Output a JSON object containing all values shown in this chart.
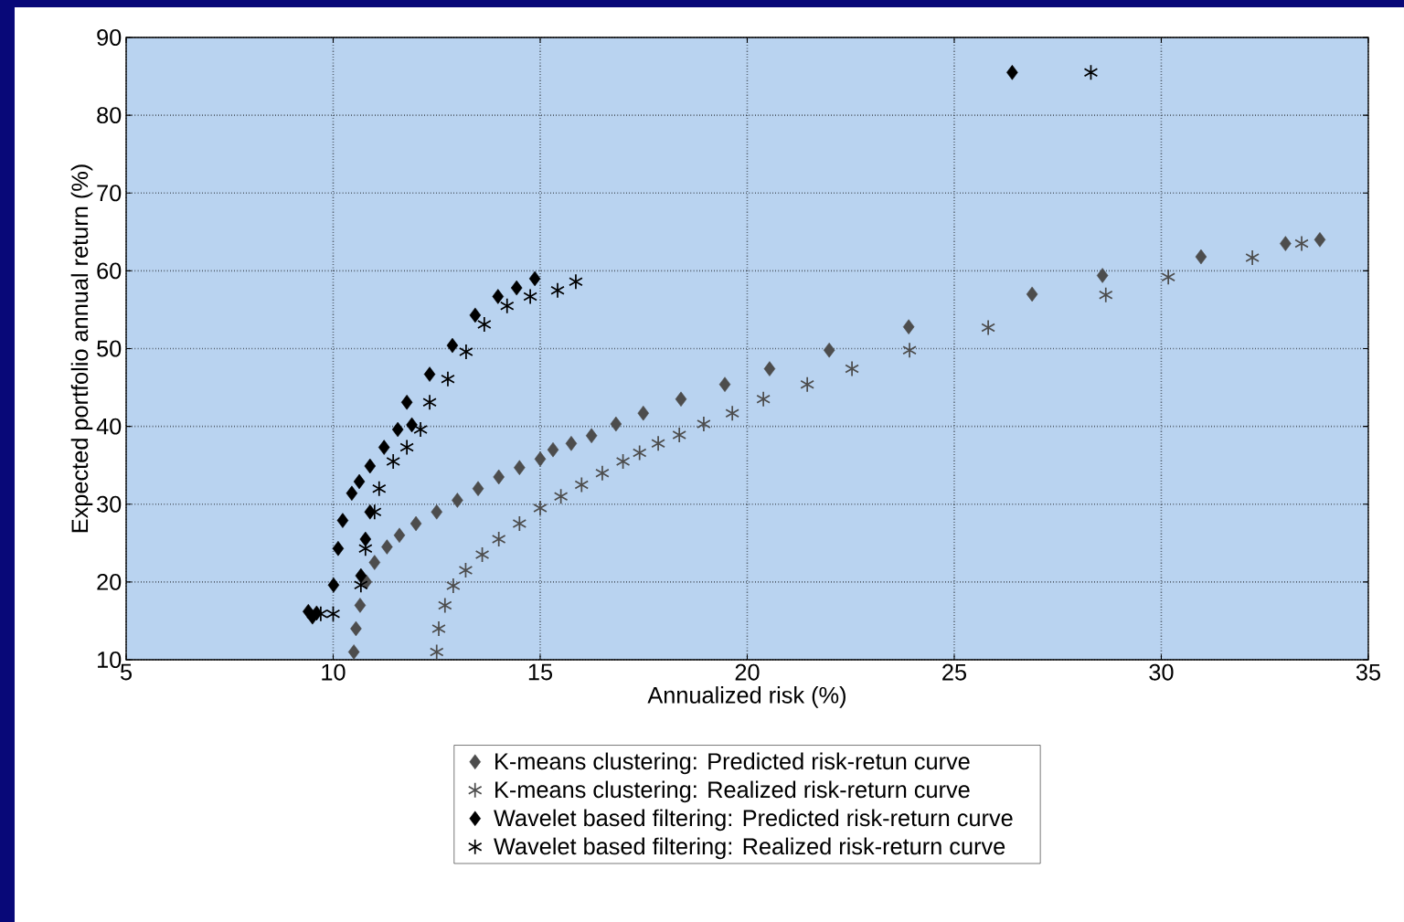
{
  "chart_data": {
    "type": "scatter",
    "xlabel": "Annualized risk (%)",
    "ylabel": "Expected portfolio annual return (%)",
    "xlim": [
      5,
      35
    ],
    "ylim": [
      10,
      90
    ],
    "xticks": [
      5,
      10,
      15,
      20,
      25,
      30,
      35
    ],
    "yticks": [
      10,
      20,
      30,
      40,
      50,
      60,
      70,
      80,
      90
    ],
    "grid": true,
    "legend": "bottom",
    "series": [
      {
        "name": "K-means clustering: Predicted risk-retun curve",
        "color": "#4d4d4d",
        "marker": "diamond",
        "x": [
          10.5,
          10.55,
          10.65,
          10.8,
          11.0,
          11.3,
          11.6,
          12.0,
          12.5,
          13.0,
          13.5,
          14.0,
          14.5,
          15.0,
          15.31,
          15.75,
          16.24,
          16.83,
          17.49,
          18.4,
          19.46,
          20.54,
          21.98,
          23.9,
          26.88,
          28.58,
          30.96,
          33.0,
          33.83
        ],
        "values": [
          11,
          14,
          17,
          20,
          22.5,
          24.5,
          26,
          27.5,
          29,
          30.5,
          32,
          33.5,
          34.7,
          35.8,
          37.0,
          37.8,
          38.8,
          40.3,
          41.7,
          43.5,
          45.4,
          47.4,
          49.8,
          52.8,
          57.0,
          59.4,
          61.8,
          63.5,
          64.0
        ]
      },
      {
        "name": "K-means clustering: Realized risk-return curve",
        "color": "#4d4d4d",
        "marker": "cross",
        "x": [
          12.5,
          12.55,
          12.7,
          12.9,
          13.2,
          13.6,
          14.0,
          14.5,
          15.0,
          15.5,
          16.0,
          16.5,
          17.0,
          17.4,
          17.85,
          18.36,
          18.95,
          19.64,
          20.39,
          21.45,
          22.53,
          23.92,
          25.82,
          28.66,
          30.17,
          32.2,
          33.39
        ],
        "values": [
          11,
          14,
          17,
          19.5,
          21.5,
          23.5,
          25.5,
          27.5,
          29.5,
          31,
          32.5,
          34,
          35.5,
          36.6,
          37.8,
          38.9,
          40.3,
          41.7,
          43.5,
          45.4,
          47.4,
          49.8,
          52.7,
          56.9,
          59.2,
          61.7,
          63.5
        ]
      },
      {
        "name": "Wavelet based filtering: Predicted risk-return curve",
        "color": "#000000",
        "marker": "diamond",
        "x": [
          9.4,
          9.5,
          9.6,
          10.01,
          10.12,
          10.23,
          10.45,
          10.63,
          10.67,
          10.78,
          10.89,
          10.89,
          11.23,
          11.56,
          11.9,
          11.78,
          12.33,
          12.88,
          13.43,
          13.98,
          14.43,
          14.87,
          26.4
        ],
        "values": [
          16.2,
          15.5,
          16.0,
          19.6,
          24.3,
          27.9,
          31.4,
          32.9,
          20.8,
          25.5,
          29.0,
          34.9,
          37.3,
          39.6,
          40.2,
          43.1,
          46.7,
          50.4,
          54.3,
          56.7,
          57.8,
          59.0,
          85.5
        ]
      },
      {
        "name": "Wavelet based filtering: Realized risk-return curve",
        "color": "#000000",
        "marker": "cross",
        "x": [
          9.7,
          10.0,
          10.67,
          10.78,
          11.0,
          11.11,
          11.45,
          11.78,
          12.11,
          12.33,
          12.77,
          13.21,
          13.65,
          14.2,
          14.76,
          15.42,
          15.86,
          28.3
        ],
        "values": [
          15.9,
          15.9,
          19.6,
          24.3,
          29.0,
          32.0,
          35.5,
          37.3,
          39.6,
          43.1,
          46.1,
          49.6,
          53.1,
          55.5,
          56.7,
          57.5,
          58.6,
          85.5
        ]
      }
    ]
  }
}
